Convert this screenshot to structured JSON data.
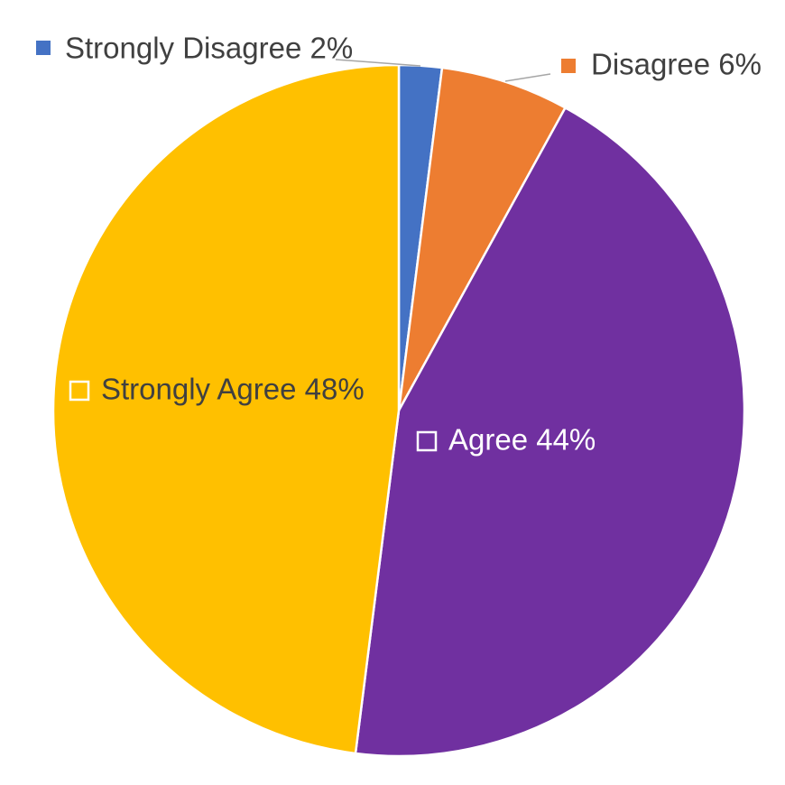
{
  "chart_data": {
    "type": "pie",
    "title": "",
    "start_angle_deg": 0,
    "direction": "clockwise",
    "slices": [
      {
        "name": "Strongly Disagree",
        "value": 2,
        "label": "Strongly Disagree 2%",
        "color": "#4472c4",
        "label_color": "#404040",
        "label_placement": "outside",
        "marker": "filled"
      },
      {
        "name": "Disagree",
        "value": 6,
        "label": "Disagree 6%",
        "color": "#ed7d31",
        "label_color": "#404040",
        "label_placement": "outside",
        "marker": "filled"
      },
      {
        "name": "Agree",
        "value": 44,
        "label": "Agree 44%",
        "color": "#7030a0",
        "label_color": "#ffffff",
        "label_placement": "inside",
        "marker": "outline"
      },
      {
        "name": "Strongly Agree",
        "value": 48,
        "label": "Strongly Agree 48%",
        "color": "#ffc000",
        "label_color": "#404040",
        "label_placement": "inside",
        "marker": "outline"
      }
    ]
  }
}
